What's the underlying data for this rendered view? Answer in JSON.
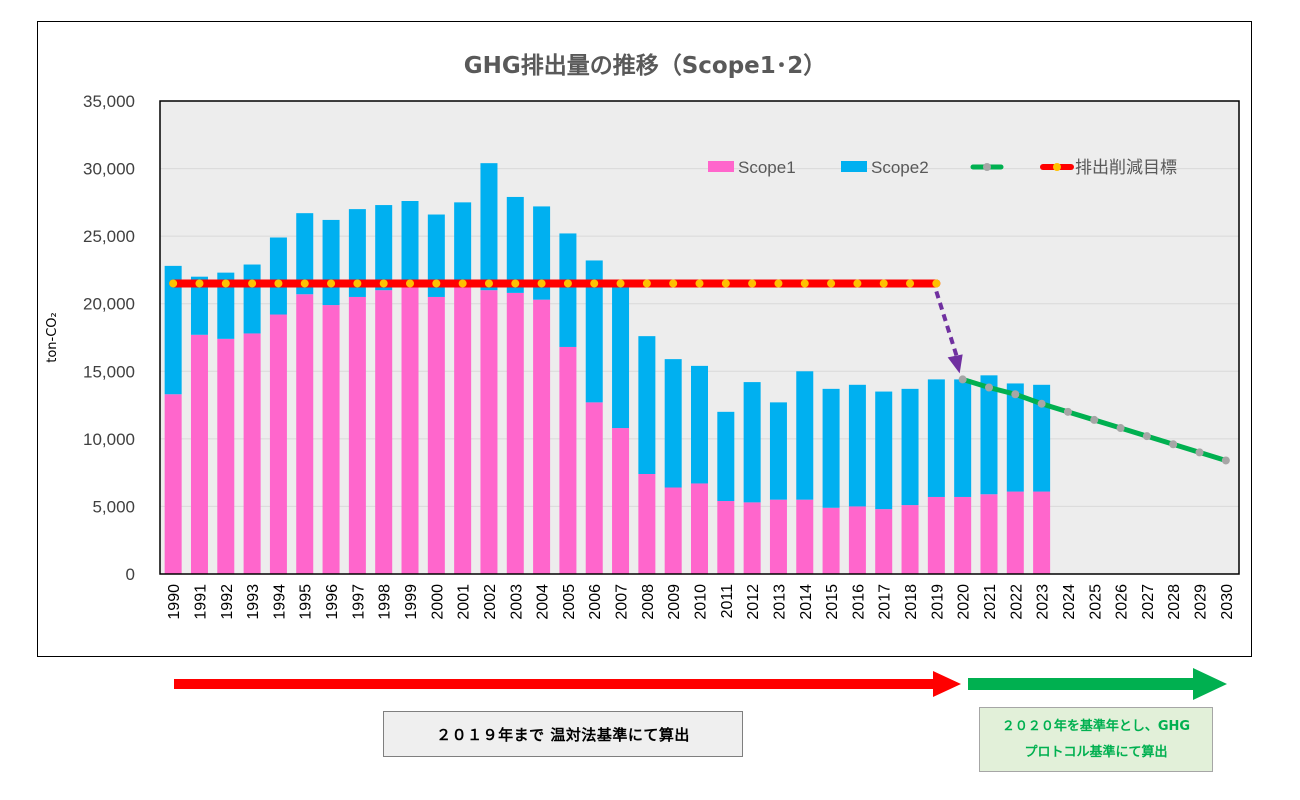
{
  "chart_data": {
    "type": "bar",
    "stacked": true,
    "title": "GHG排出量の推移（Scope1･2）",
    "ylabel": "ton-CO₂",
    "ylim": [
      0,
      35000
    ],
    "yticks": [
      0,
      5000,
      10000,
      15000,
      20000,
      25000,
      30000,
      35000
    ],
    "ytick_labels": [
      "0",
      "5,000",
      "10,000",
      "15,000",
      "20,000",
      "25,000",
      "30,000",
      "35,000"
    ],
    "grid": true,
    "legend_position": "top-right",
    "categories": [
      "1990",
      "1991",
      "1992",
      "1993",
      "1994",
      "1995",
      "1996",
      "1997",
      "1998",
      "1999",
      "2000",
      "2001",
      "2002",
      "2003",
      "2004",
      "2005",
      "2006",
      "2007",
      "2008",
      "2009",
      "2010",
      "2011",
      "2012",
      "2013",
      "2014",
      "2015",
      "2016",
      "2017",
      "2018",
      "2019",
      "2020",
      "2021",
      "2022",
      "2023",
      "2024",
      "2025",
      "2026",
      "2027",
      "2028",
      "2029",
      "2030"
    ],
    "series": [
      {
        "name": "Scope1",
        "kind": "bar",
        "color": "#ff66cc",
        "values": [
          13300,
          17700,
          17400,
          17800,
          19200,
          20700,
          19900,
          20500,
          21000,
          21200,
          20500,
          21300,
          21000,
          20800,
          20300,
          16800,
          12700,
          10800,
          7400,
          6400,
          6700,
          5400,
          5300,
          5500,
          5500,
          4900,
          5000,
          4800,
          5100,
          5700,
          5700,
          5900,
          6100,
          6100,
          null,
          null,
          null,
          null,
          null,
          null,
          null
        ]
      },
      {
        "name": "Scope2",
        "kind": "bar",
        "color": "#00b0f0",
        "values": [
          9500,
          4300,
          4900,
          5100,
          5700,
          6000,
          6300,
          6500,
          6300,
          6400,
          6100,
          6200,
          9400,
          7100,
          6900,
          8400,
          10500,
          10500,
          10200,
          9500,
          8700,
          6600,
          8900,
          7200,
          9500,
          8800,
          9000,
          8700,
          8600,
          8700,
          8700,
          8800,
          8000,
          7900,
          null,
          null,
          null,
          null,
          null,
          null,
          null
        ]
      },
      {
        "name": "",
        "kind": "line",
        "color": "#00b050",
        "marker_color": "#a6a6a6",
        "values": [
          null,
          null,
          null,
          null,
          null,
          null,
          null,
          null,
          null,
          null,
          null,
          null,
          null,
          null,
          null,
          null,
          null,
          null,
          null,
          null,
          null,
          null,
          null,
          null,
          null,
          null,
          null,
          null,
          null,
          null,
          14400,
          13800,
          13300,
          12600,
          12000,
          11400,
          10800,
          10200,
          9600,
          9000,
          8400
        ]
      },
      {
        "name": "排出削減目標",
        "kind": "line",
        "color": "#ff0000",
        "marker_color": "#ffc000",
        "values": [
          21500,
          21500,
          21500,
          21500,
          21500,
          21500,
          21500,
          21500,
          21500,
          21500,
          21500,
          21500,
          21500,
          21500,
          21500,
          21500,
          21500,
          21500,
          21500,
          21500,
          21500,
          21500,
          21500,
          21500,
          21500,
          21500,
          21500,
          21500,
          21500,
          21500,
          null,
          null,
          null,
          null,
          null,
          null,
          null,
          null,
          null,
          null,
          null
        ]
      }
    ],
    "transition_arrow": {
      "from": [
        "2019",
        21500
      ],
      "to": [
        "2020",
        14400
      ],
      "color": "#7030a0",
      "style": "dashed"
    }
  },
  "period_arrows": [
    {
      "from": "1990",
      "to": "2019",
      "color": "#ff0000"
    },
    {
      "from": "2020",
      "to": "2030",
      "color": "#00b050"
    }
  ],
  "notes": {
    "left": "２０１９年まで  温対法基準にて算出",
    "right_line1": "２０２０年を基準年とし、GHG",
    "right_line2": "プロトコル基準にて算出"
  }
}
